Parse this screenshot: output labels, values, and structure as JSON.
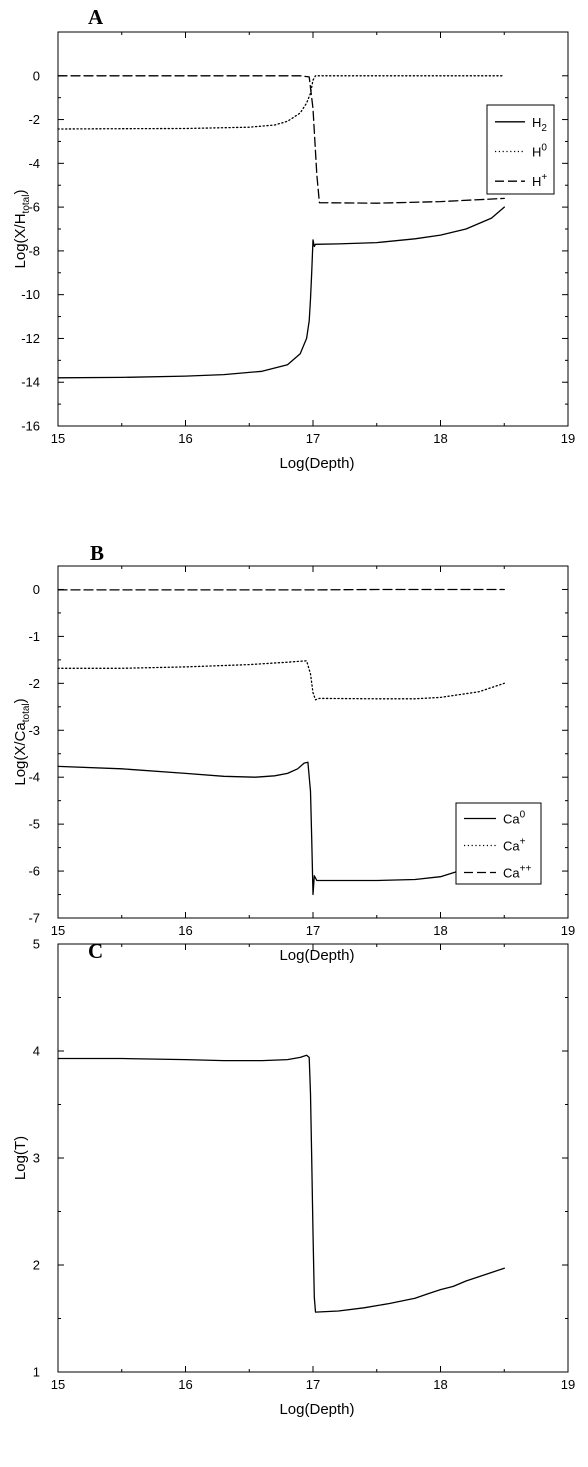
{
  "figure": {
    "panels": [
      "A",
      "B",
      "C"
    ]
  },
  "chart_data": [
    {
      "panel": "A",
      "type": "line",
      "title": "",
      "xlabel": "Log(Depth)",
      "ylabel": "Log(X/H_total)",
      "ylabel_parts": [
        "Log(X/H",
        "total",
        ")"
      ],
      "xlim": [
        15,
        19
      ],
      "ylim": [
        -16,
        2
      ],
      "xticks": [
        15,
        16,
        17,
        18,
        19
      ],
      "yticks": [
        -16,
        -14,
        -12,
        -10,
        -8,
        -6,
        -4,
        -2,
        0
      ],
      "grid": false,
      "legend_position": "right",
      "series": [
        {
          "name": "H2",
          "legend_base": "H",
          "legend_script": "2",
          "legend_script_type": "sub",
          "style": "solid",
          "points": [
            [
              15,
              -13.8
            ],
            [
              15.5,
              -13.78
            ],
            [
              16,
              -13.72
            ],
            [
              16.3,
              -13.65
            ],
            [
              16.6,
              -13.5
            ],
            [
              16.8,
              -13.2
            ],
            [
              16.9,
              -12.7
            ],
            [
              16.95,
              -12.0
            ],
            [
              16.97,
              -11.2
            ],
            [
              16.98,
              -10.2
            ],
            [
              16.99,
              -9.0
            ],
            [
              17.0,
              -7.5
            ],
            [
              17.01,
              -7.8
            ],
            [
              17.02,
              -7.7
            ],
            [
              17.2,
              -7.68
            ],
            [
              17.5,
              -7.62
            ],
            [
              17.8,
              -7.45
            ],
            [
              18.0,
              -7.28
            ],
            [
              18.2,
              -7.0
            ],
            [
              18.4,
              -6.5
            ],
            [
              18.5,
              -6.0
            ]
          ]
        },
        {
          "name": "H0",
          "legend_base": "H",
          "legend_script": "0",
          "legend_script_type": "sup",
          "style": "dotted",
          "points": [
            [
              15,
              -2.43
            ],
            [
              15.5,
              -2.42
            ],
            [
              16,
              -2.41
            ],
            [
              16.5,
              -2.35
            ],
            [
              16.7,
              -2.25
            ],
            [
              16.8,
              -2.08
            ],
            [
              16.9,
              -1.7
            ],
            [
              16.95,
              -1.25
            ],
            [
              16.98,
              -0.8
            ],
            [
              17.0,
              -0.2
            ],
            [
              17.02,
              0
            ],
            [
              17.5,
              0
            ],
            [
              18.0,
              0
            ],
            [
              18.5,
              0
            ]
          ]
        },
        {
          "name": "H+",
          "legend_base": "H",
          "legend_script": "+",
          "legend_script_type": "sup",
          "style": "dashed",
          "points": [
            [
              15,
              0
            ],
            [
              16,
              0
            ],
            [
              16.9,
              0
            ],
            [
              16.97,
              -0.05
            ],
            [
              17.0,
              -1.5
            ],
            [
              17.03,
              -4.5
            ],
            [
              17.05,
              -5.8
            ],
            [
              17.5,
              -5.82
            ],
            [
              18.0,
              -5.75
            ],
            [
              18.5,
              -5.6
            ]
          ]
        }
      ]
    },
    {
      "panel": "B",
      "type": "line",
      "title": "",
      "xlabel": "Log(Depth)",
      "ylabel": "Log(X/Ca_total)",
      "ylabel_parts": [
        "Log(X/Ca",
        "total",
        ")"
      ],
      "xlim": [
        15,
        19
      ],
      "ylim": [
        -7,
        0.5
      ],
      "xticks": [
        15,
        16,
        17,
        18,
        19
      ],
      "yticks": [
        -7,
        -6,
        -5,
        -4,
        -3,
        -2,
        -1,
        0
      ],
      "grid": false,
      "legend_position": "right",
      "series": [
        {
          "name": "Ca0",
          "legend_base": "Ca",
          "legend_script": "0",
          "legend_script_type": "sup",
          "style": "solid",
          "points": [
            [
              15,
              -3.77
            ],
            [
              15.5,
              -3.82
            ],
            [
              16,
              -3.92
            ],
            [
              16.3,
              -3.98
            ],
            [
              16.55,
              -4.0
            ],
            [
              16.7,
              -3.97
            ],
            [
              16.8,
              -3.92
            ],
            [
              16.88,
              -3.82
            ],
            [
              16.93,
              -3.7
            ],
            [
              16.96,
              -3.68
            ],
            [
              16.98,
              -4.3
            ],
            [
              16.99,
              -5.3
            ],
            [
              17.0,
              -6.5
            ],
            [
              17.01,
              -6.1
            ],
            [
              17.03,
              -6.2
            ],
            [
              17.5,
              -6.2
            ],
            [
              17.8,
              -6.18
            ],
            [
              18.0,
              -6.12
            ],
            [
              18.2,
              -5.95
            ],
            [
              18.4,
              -5.65
            ],
            [
              18.5,
              -5.43
            ]
          ]
        },
        {
          "name": "Ca+",
          "legend_base": "Ca",
          "legend_script": "+",
          "legend_script_type": "sup",
          "style": "dotted",
          "points": [
            [
              15,
              -1.68
            ],
            [
              15.5,
              -1.68
            ],
            [
              16,
              -1.65
            ],
            [
              16.5,
              -1.6
            ],
            [
              16.8,
              -1.55
            ],
            [
              16.95,
              -1.52
            ],
            [
              16.98,
              -1.8
            ],
            [
              17.0,
              -2.2
            ],
            [
              17.02,
              -2.35
            ],
            [
              17.05,
              -2.32
            ],
            [
              17.5,
              -2.33
            ],
            [
              17.8,
              -2.33
            ],
            [
              18.0,
              -2.3
            ],
            [
              18.3,
              -2.18
            ],
            [
              18.5,
              -2.0
            ]
          ]
        },
        {
          "name": "Ca++",
          "legend_base": "Ca",
          "legend_script": "++",
          "legend_script_type": "sup",
          "style": "dashed",
          "points": [
            [
              15,
              -0.01
            ],
            [
              16,
              -0.01
            ],
            [
              17,
              -0.01
            ],
            [
              17.5,
              0
            ],
            [
              18.0,
              0
            ],
            [
              18.5,
              0
            ]
          ]
        }
      ]
    },
    {
      "panel": "C",
      "type": "line",
      "title": "",
      "xlabel": "Log(Depth)",
      "ylabel": "Log(T)",
      "ylabel_parts": [
        "Log(T)",
        "",
        ""
      ],
      "xlim": [
        15,
        19
      ],
      "ylim": [
        1,
        5
      ],
      "xticks": [
        15,
        16,
        17,
        18,
        19
      ],
      "yticks": [
        1,
        2,
        3,
        4,
        5
      ],
      "grid": false,
      "legend_position": "none",
      "series": [
        {
          "style": "solid",
          "points": [
            [
              15,
              3.93
            ],
            [
              15.5,
              3.93
            ],
            [
              16,
              3.92
            ],
            [
              16.3,
              3.91
            ],
            [
              16.6,
              3.91
            ],
            [
              16.8,
              3.92
            ],
            [
              16.9,
              3.94
            ],
            [
              16.95,
              3.96
            ],
            [
              16.97,
              3.94
            ],
            [
              16.98,
              3.6
            ],
            [
              16.99,
              3.0
            ],
            [
              17.0,
              2.3
            ],
            [
              17.01,
              1.7
            ],
            [
              17.02,
              1.56
            ],
            [
              17.2,
              1.57
            ],
            [
              17.4,
              1.6
            ],
            [
              17.6,
              1.64
            ],
            [
              17.8,
              1.69
            ],
            [
              17.9,
              1.73
            ],
            [
              18.0,
              1.77
            ],
            [
              18.1,
              1.8
            ],
            [
              18.2,
              1.85
            ],
            [
              18.3,
              1.89
            ],
            [
              18.4,
              1.93
            ],
            [
              18.5,
              1.97
            ]
          ]
        }
      ]
    }
  ]
}
